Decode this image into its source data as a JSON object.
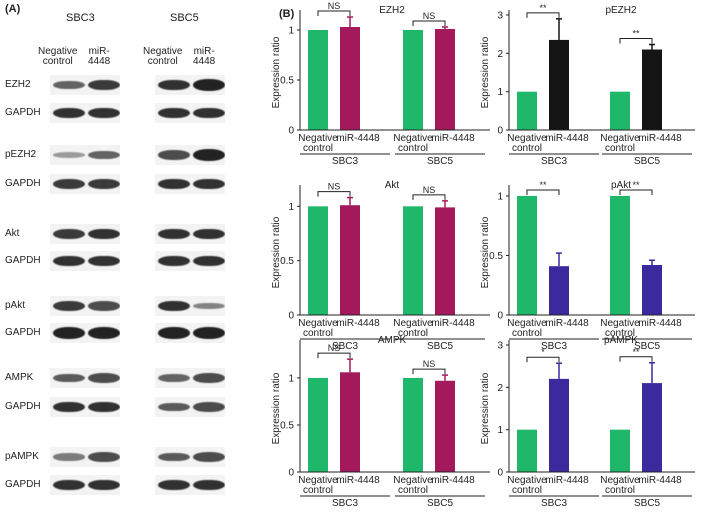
{
  "panel_a": {
    "letter": "(A)",
    "cell_lines": [
      "SBC3",
      "SBC5"
    ],
    "lanes": {
      "negative": "Negative\ncontrol",
      "mir": "miR-\n4448"
    },
    "blots": [
      {
        "label": "EZH2",
        "bands": [
          0.55,
          0.8,
          0.85,
          0.95
        ]
      },
      {
        "label": "GAPDH",
        "bands": [
          0.85,
          0.85,
          0.85,
          0.85
        ]
      },
      {
        "label": "pEZH2",
        "bands": [
          0.2,
          0.55,
          0.7,
          0.95
        ]
      },
      {
        "label": "GAPDH",
        "bands": [
          0.8,
          0.8,
          0.85,
          0.85
        ]
      },
      {
        "label": "Akt",
        "bands": [
          0.8,
          0.85,
          0.85,
          0.85
        ]
      },
      {
        "label": "GAPDH",
        "bands": [
          0.85,
          0.85,
          0.85,
          0.85
        ]
      },
      {
        "label": "pAkt",
        "bands": [
          0.8,
          0.7,
          0.85,
          0.35
        ]
      },
      {
        "label": "GAPDH",
        "bands": [
          0.95,
          0.95,
          0.95,
          0.95
        ]
      },
      {
        "label": "AMPK",
        "bands": [
          0.6,
          0.7,
          0.55,
          0.7
        ]
      },
      {
        "label": "GAPDH",
        "bands": [
          0.85,
          0.85,
          0.6,
          0.7
        ]
      },
      {
        "label": "pAMPK",
        "bands": [
          0.4,
          0.7,
          0.6,
          0.7
        ]
      },
      {
        "label": "GAPDH",
        "bands": [
          0.85,
          0.85,
          0.85,
          0.85
        ]
      }
    ]
  },
  "panel_b": {
    "letter": "(B)"
  },
  "colors": {
    "negative": "#1fb86a",
    "mir_total": "#a3195b",
    "mir_pezh2": "#141414",
    "mir_phospho": "#3a2a9e"
  },
  "chart_data": [
    {
      "type": "bar",
      "title": "EZH2",
      "ylabel": "Expression ratio",
      "ylim": [
        0,
        1.15
      ],
      "yticks": [
        0,
        0.5,
        1
      ],
      "categories": [
        "Negative control",
        "miR-4448"
      ],
      "groups": [
        "SBC3",
        "SBC5"
      ],
      "values": [
        [
          1.0,
          1.03
        ],
        [
          1.0,
          1.01
        ]
      ],
      "errors": [
        [
          0,
          0.1
        ],
        [
          0,
          0.02
        ]
      ],
      "significance": [
        "NS",
        "NS"
      ],
      "mir_color": "mir_total"
    },
    {
      "type": "bar",
      "title": "pEZH2",
      "ylabel": "Expression ratio",
      "ylim": [
        0,
        3
      ],
      "yticks": [
        0,
        1,
        2,
        3
      ],
      "categories": [
        "Negative control",
        "miR-4448"
      ],
      "groups": [
        "SBC3",
        "SBC5"
      ],
      "values": [
        [
          1.0,
          2.35
        ],
        [
          1.0,
          2.1
        ]
      ],
      "errors": [
        [
          0,
          0.55
        ],
        [
          0,
          0.13
        ]
      ],
      "significance": [
        "**",
        "**"
      ],
      "mir_color": "mir_pezh2"
    },
    {
      "type": "bar",
      "title": "Akt",
      "ylabel": "Expression ratio",
      "ylim": [
        0,
        1.15
      ],
      "yticks": [
        0,
        0.5,
        1
      ],
      "categories": [
        "Negative control",
        "miR-4448"
      ],
      "groups": [
        "SBC3",
        "SBC5"
      ],
      "values": [
        [
          1.0,
          1.01
        ],
        [
          1.0,
          0.99
        ]
      ],
      "errors": [
        [
          0,
          0.07
        ],
        [
          0,
          0.06
        ]
      ],
      "significance": [
        "NS",
        "NS"
      ],
      "mir_color": "mir_total"
    },
    {
      "type": "bar",
      "title": "pAkt",
      "ylabel": "Expression ratio",
      "ylim": [
        0,
        1.05
      ],
      "yticks": [
        0,
        0.5,
        1
      ],
      "categories": [
        "Negative control",
        "miR-4448"
      ],
      "groups": [
        "SBC3",
        "SBC5"
      ],
      "values": [
        [
          1.0,
          0.41
        ],
        [
          1.0,
          0.42
        ]
      ],
      "errors": [
        [
          0,
          0.11
        ],
        [
          0,
          0.04
        ]
      ],
      "significance": [
        "**",
        "**"
      ],
      "mir_color": "mir_phospho"
    },
    {
      "type": "bar",
      "title": "AMPK",
      "ylabel": "Expression ratio",
      "ylim": [
        0,
        1.35
      ],
      "yticks": [
        0,
        0.5,
        1
      ],
      "categories": [
        "Negative control",
        "miR-4448"
      ],
      "groups": [
        "SBC3",
        "SBC5"
      ],
      "values": [
        [
          1.0,
          1.06
        ],
        [
          1.0,
          0.97
        ]
      ],
      "errors": [
        [
          0,
          0.14
        ],
        [
          0,
          0.06
        ]
      ],
      "significance": [
        "NS",
        "NS"
      ],
      "mir_color": "mir_total"
    },
    {
      "type": "bar",
      "title": "pAMPK",
      "ylabel": "Expression ratio",
      "ylim": [
        0,
        3
      ],
      "yticks": [
        0,
        1,
        2,
        3
      ],
      "categories": [
        "Negative control",
        "miR-4448"
      ],
      "groups": [
        "SBC3",
        "SBC5"
      ],
      "values": [
        [
          1.0,
          2.2
        ],
        [
          1.0,
          2.1
        ]
      ],
      "errors": [
        [
          0,
          0.37
        ],
        [
          0,
          0.48
        ]
      ],
      "significance": [
        "*",
        "**"
      ],
      "mir_color": "mir_phospho"
    }
  ]
}
